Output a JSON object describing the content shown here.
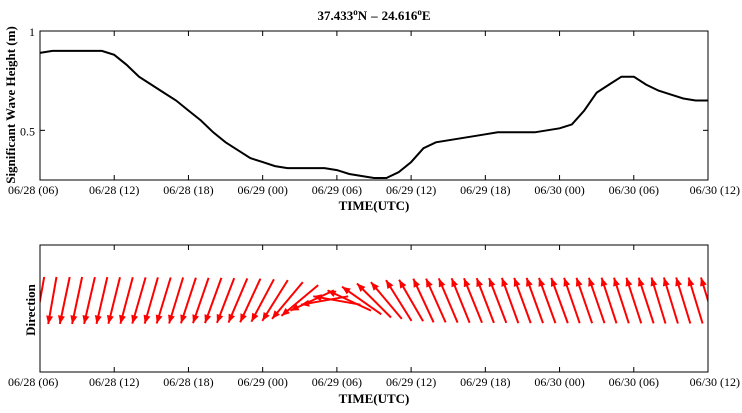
{
  "chart_data": [
    {
      "type": "line",
      "title_lat": "37.433",
      "title_lon": "24.616",
      "title_deg": "o",
      "title_lat_unit": "N",
      "title_sep": "–",
      "title_lon_unit": "E",
      "xlabel": "TIME(UTC)",
      "ylabel": "Significant Wave Height (m)",
      "x_tick_labels": [
        "06/28 (06)",
        "06/28 (12)",
        "06/28 (18)",
        "06/29 (00)",
        "06/29 (06)",
        "06/29 (12)",
        "06/29 (18)",
        "06/30 (00)",
        "06/30 (06)",
        "06/30 (12)"
      ],
      "x_ticks_hours": [
        0,
        6,
        12,
        18,
        24,
        30,
        36,
        42,
        48,
        54
      ],
      "xlim_hours": [
        0,
        54
      ],
      "y_tick_labels": [
        "0.5",
        "1"
      ],
      "y_ticks": [
        0.5,
        1.0
      ],
      "ylim": [
        0.25,
        1.0
      ],
      "series": [
        {
          "x_hours": [
            0,
            1,
            2,
            3,
            4,
            5,
            6,
            7,
            8,
            9,
            10,
            11,
            12,
            13,
            14,
            15,
            16,
            17,
            18,
            19,
            20,
            21,
            22,
            23,
            24,
            25,
            26,
            27,
            28,
            29,
            30,
            31,
            32,
            33,
            34,
            35,
            36,
            37,
            38,
            39,
            40,
            41,
            42,
            43,
            44,
            45,
            46,
            47,
            48,
            49,
            50,
            51,
            52,
            53,
            54
          ],
          "values": [
            0.89,
            0.9,
            0.9,
            0.9,
            0.9,
            0.9,
            0.88,
            0.83,
            0.77,
            0.73,
            0.69,
            0.65,
            0.6,
            0.55,
            0.49,
            0.44,
            0.4,
            0.36,
            0.34,
            0.32,
            0.31,
            0.31,
            0.31,
            0.31,
            0.3,
            0.28,
            0.27,
            0.26,
            0.26,
            0.29,
            0.34,
            0.41,
            0.44,
            0.45,
            0.46,
            0.47,
            0.48,
            0.49,
            0.49,
            0.49,
            0.49,
            0.5,
            0.51,
            0.53,
            0.6,
            0.69,
            0.73,
            0.77,
            0.77,
            0.73,
            0.7,
            0.68,
            0.66,
            0.65,
            0.65
          ]
        }
      ]
    },
    {
      "type": "scatter",
      "subtype": "direction-arrows",
      "xlabel": "TIME(UTC)",
      "ylabel": "Direction",
      "x_tick_labels": [
        "06/28 (06)",
        "06/28 (12)",
        "06/28 (18)",
        "06/29 (00)",
        "06/29 (06)",
        "06/29 (12)",
        "06/29 (18)",
        "06/30 (00)",
        "06/30 (06)",
        "06/30 (12)"
      ],
      "x_ticks_hours": [
        0,
        6,
        12,
        18,
        24,
        30,
        36,
        42,
        48,
        54
      ],
      "xlim_hours": [
        0,
        54
      ],
      "color": "#ff0000",
      "series": [
        {
          "x_hours": [
            0,
            1,
            2,
            3,
            4,
            5,
            6,
            7,
            8,
            9,
            10,
            11,
            12,
            13,
            14,
            15,
            16,
            17,
            18,
            19,
            20,
            21,
            22,
            23,
            24,
            25,
            26,
            27,
            28,
            29,
            30,
            31,
            32,
            33,
            34,
            35,
            36,
            37,
            38,
            39,
            40,
            41,
            42,
            43,
            44,
            45,
            46,
            47,
            48,
            49,
            50,
            51,
            52,
            53,
            54
          ],
          "direction_deg": [
            190,
            190,
            192,
            192,
            193,
            193,
            194,
            195,
            196,
            196,
            197,
            197,
            198,
            199,
            200,
            201,
            203,
            205,
            208,
            212,
            220,
            230,
            245,
            260,
            280,
            295,
            305,
            315,
            320,
            328,
            330,
            335,
            336,
            337,
            338,
            338,
            339,
            339,
            340,
            340,
            340,
            340,
            340,
            341,
            341,
            341,
            342,
            342,
            342,
            342,
            343,
            343,
            343,
            343,
            343
          ]
        }
      ]
    }
  ]
}
